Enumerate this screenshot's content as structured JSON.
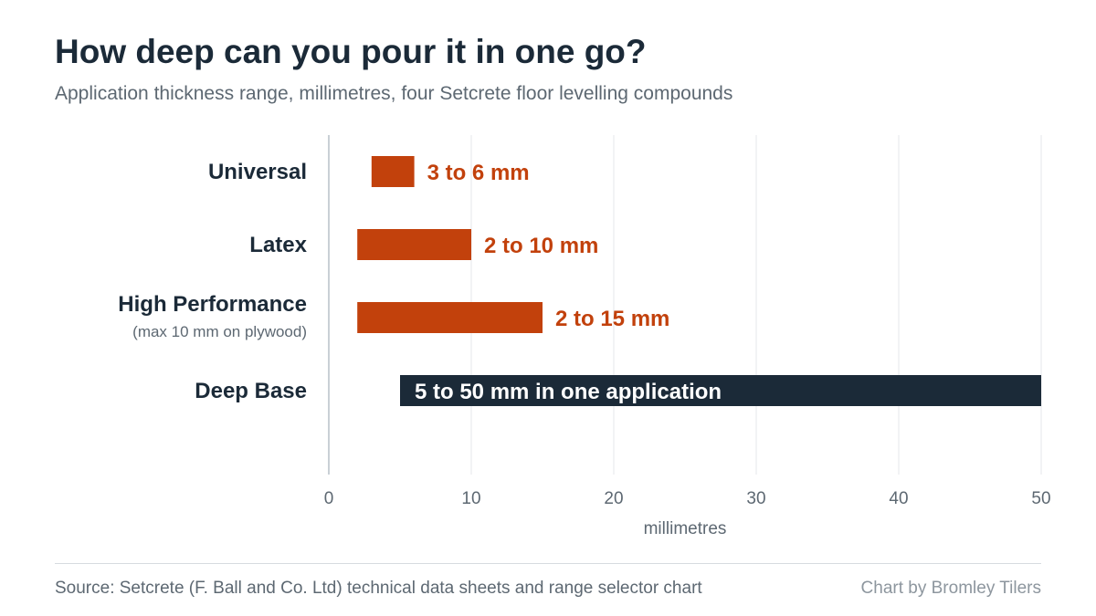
{
  "title": "How deep can you pour it in one go?",
  "subtitle": "Application thickness range, millimetres, four Setcrete floor levelling compounds",
  "chart_data": {
    "type": "bar",
    "orientation": "horizontal",
    "subtype": "floating-range",
    "xlabel": "millimetres",
    "xlim": [
      0,
      50
    ],
    "xticks": [
      0,
      10,
      20,
      30,
      40,
      50
    ],
    "grid": "vertical",
    "categories": [
      {
        "name": "Universal",
        "note": "",
        "min": 3,
        "max": 6,
        "label": "3 to 6 mm",
        "color": "#c2410c",
        "label_position": "outside"
      },
      {
        "name": "Latex",
        "note": "",
        "min": 2,
        "max": 10,
        "label": "2 to 10 mm",
        "color": "#c2410c",
        "label_position": "outside"
      },
      {
        "name": "High Performance",
        "note": "(max 10 mm on plywood)",
        "min": 2,
        "max": 15,
        "label": "2 to 15 mm",
        "color": "#c2410c",
        "label_position": "outside"
      },
      {
        "name": "Deep Base",
        "note": "",
        "min": 5,
        "max": 50,
        "label": "5 to 50 mm in one application",
        "color": "#1b2a38",
        "label_position": "inside"
      }
    ]
  },
  "footer": {
    "source": "Source: Setcrete (F. Ball and Co. Ltd) technical data sheets and range selector chart",
    "credit": "Chart by Bromley Tilers"
  }
}
